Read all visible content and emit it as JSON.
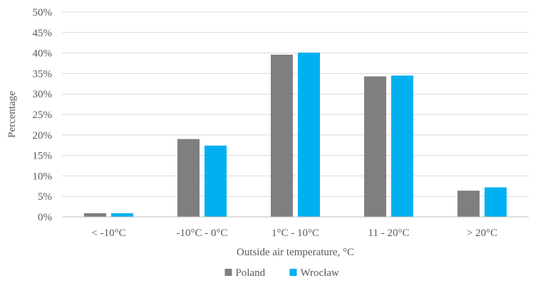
{
  "chart_data": {
    "type": "bar",
    "title": "",
    "xlabel": "Outside air temperature, °C",
    "ylabel": "Percentage",
    "categories": [
      "< -10°C",
      "-10°C - 0°C",
      "1°C - 10°C",
      "11 - 20°C",
      "> 20°C"
    ],
    "series": [
      {
        "name": "Poland",
        "color": "#7f7f7f",
        "values": [
          0.9,
          19.0,
          39.6,
          34.3,
          6.4
        ]
      },
      {
        "name": "Wrocław",
        "color": "#00b0f0",
        "values": [
          0.9,
          17.4,
          40.1,
          34.5,
          7.2
        ]
      }
    ],
    "ylim": [
      0,
      50
    ],
    "yticks": [
      0,
      5,
      10,
      15,
      20,
      25,
      30,
      35,
      40,
      45,
      50
    ],
    "ytick_labels": [
      "0%",
      "5%",
      "10%",
      "15%",
      "20%",
      "25%",
      "30%",
      "35%",
      "40%",
      "45%",
      "50%"
    ],
    "grid": true,
    "legend": "bottom-center"
  }
}
